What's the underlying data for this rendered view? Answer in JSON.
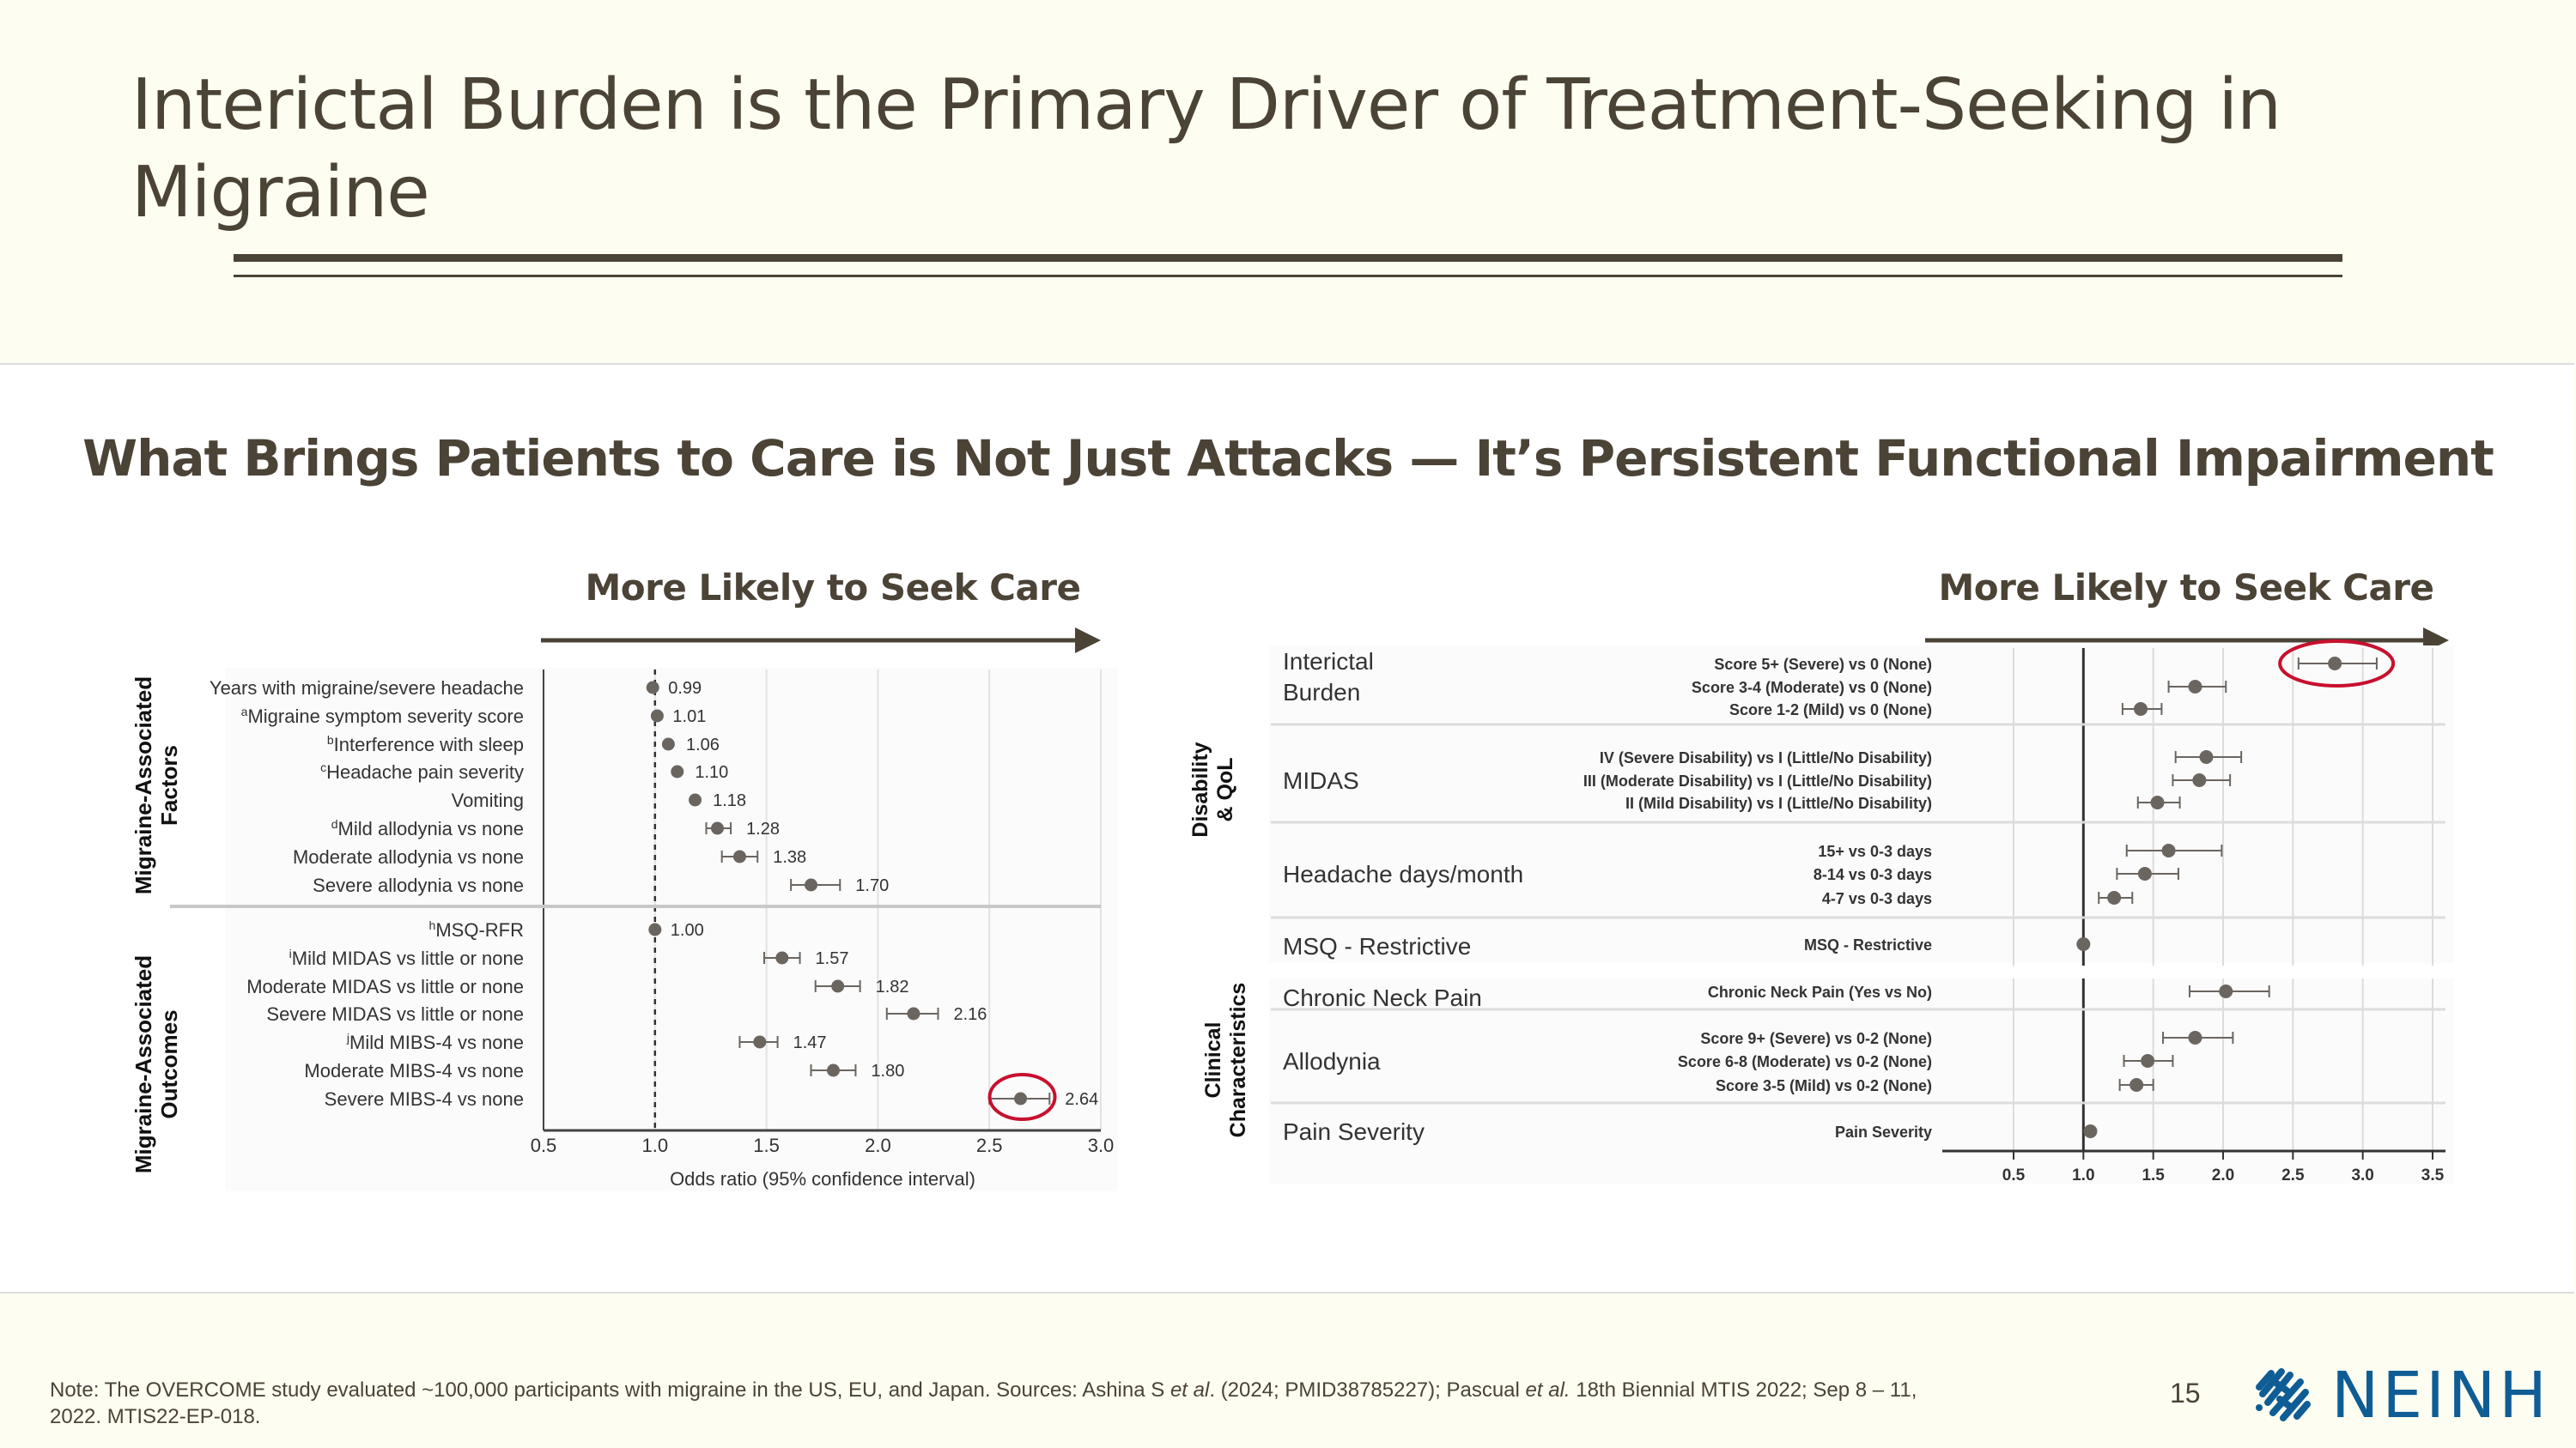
{
  "title": "Interictal Burden is the Primary Driver of Treatment-Seeking in Migraine",
  "subtitle": "What Brings Patients to Care is Not Just Attacks — It’s Persistent Functional Impairment",
  "left_arrow_label": "More Likely to Seek Care",
  "right_arrow_label": "More Likely to Seek Care",
  "footer": {
    "note_prefix": "Note: The OVERCOME study evaluated ~100,000 participants with migraine in the US, EU, and Japan. Sources: Ashina S ",
    "etal1": "et al",
    "note_mid": ". (2024; PMID38785227); Pascual ",
    "etal2": "et al.",
    "note_suffix": " 18th Biennial MTIS 2022; Sep 8 – 11, 2022. MTIS22-EP-018."
  },
  "page_number": "15",
  "logo": {
    "text": "NEINH",
    "color": "#0f5d94"
  },
  "colors": {
    "point": "#6b6560",
    "highlight": "#c8102e",
    "text": "#4b4336"
  },
  "chart_data": [
    {
      "type": "forest",
      "xlabel": "Odds ratio (95% confidence interval)",
      "xlim": [
        0.5,
        3.0
      ],
      "xticks": [
        "0.5",
        "1.0",
        "1.5",
        "2.0",
        "2.5",
        "3.0"
      ],
      "reference_line": 1.0,
      "grid": true,
      "groups": [
        {
          "name": "Migraine-Associated Factors",
          "rows": [
            {
              "sup": "",
              "label": "Years with migraine/severe headache",
              "value": 0.99,
              "value_label": "0.99",
              "ci": [
                0.99,
                0.99
              ]
            },
            {
              "sup": "a",
              "label": "Migraine symptom severity score",
              "value": 1.01,
              "value_label": "1.01",
              "ci": [
                1.01,
                1.01
              ]
            },
            {
              "sup": "b",
              "label": "Interference with sleep",
              "value": 1.06,
              "value_label": "1.06",
              "ci": [
                1.05,
                1.07
              ]
            },
            {
              "sup": "c",
              "label": "Headache pain severity",
              "value": 1.1,
              "value_label": "1.10",
              "ci": [
                1.09,
                1.11
              ]
            },
            {
              "sup": "",
              "label": "Vomiting",
              "value": 1.18,
              "value_label": "1.18",
              "ci": [
                1.17,
                1.19
              ]
            },
            {
              "sup": "d",
              "label": "Mild allodynia vs none",
              "value": 1.28,
              "value_label": "1.28",
              "ci": [
                1.23,
                1.34
              ]
            },
            {
              "sup": "",
              "label": "Moderate allodynia vs none",
              "value": 1.38,
              "value_label": "1.38",
              "ci": [
                1.3,
                1.46
              ]
            },
            {
              "sup": "",
              "label": "Severe allodynia vs none",
              "value": 1.7,
              "value_label": "1.70",
              "ci": [
                1.61,
                1.83
              ]
            }
          ]
        },
        {
          "name": "Migraine-Associated Outcomes",
          "rows": [
            {
              "sup": "h",
              "label": "MSQ-RFR",
              "value": 1.0,
              "value_label": "1.00",
              "ci": [
                1.0,
                1.0
              ]
            },
            {
              "sup": "i",
              "label": "Mild MIDAS vs little or none",
              "value": 1.57,
              "value_label": "1.57",
              "ci": [
                1.49,
                1.65
              ]
            },
            {
              "sup": "",
              "label": "Moderate MIDAS vs little or none",
              "value": 1.82,
              "value_label": "1.82",
              "ci": [
                1.72,
                1.92
              ]
            },
            {
              "sup": "",
              "label": "Severe MIDAS vs little or none",
              "value": 2.16,
              "value_label": "2.16",
              "ci": [
                2.04,
                2.27
              ]
            },
            {
              "sup": "j",
              "label": "Mild MIBS-4 vs none",
              "value": 1.47,
              "value_label": "1.47",
              "ci": [
                1.38,
                1.55
              ]
            },
            {
              "sup": "",
              "label": "Moderate MIBS-4 vs none",
              "value": 1.8,
              "value_label": "1.80",
              "ci": [
                1.7,
                1.9
              ]
            },
            {
              "sup": "",
              "label": "Severe MIBS-4 vs none",
              "value": 2.64,
              "value_label": "2.64",
              "ci": [
                2.5,
                2.77
              ],
              "highlighted": true
            }
          ]
        }
      ]
    },
    {
      "type": "forest",
      "xlim": [
        0.5,
        3.5
      ],
      "xticks": [
        "0.5",
        "1.0",
        "1.5",
        "2.0",
        "2.5",
        "3.0",
        "3.5"
      ],
      "reference_line": 1.0,
      "grid": true,
      "groups": [
        {
          "name": "Disability & QoL",
          "categories": [
            {
              "name": "Interictal Burden",
              "rows": [
                {
                  "label": "Score 5+ (Severe) vs 0 (None)",
                  "value": 2.8,
                  "ci": [
                    2.54,
                    3.1
                  ],
                  "highlighted": true
                },
                {
                  "label": "Score 3-4 (Moderate) vs 0 (None)",
                  "value": 1.8,
                  "ci": [
                    1.61,
                    2.02
                  ]
                },
                {
                  "label": "Score 1-2 (Mild) vs 0 (None)",
                  "value": 1.41,
                  "ci": [
                    1.28,
                    1.56
                  ]
                }
              ]
            },
            {
              "name": "MIDAS",
              "rows": [
                {
                  "label": "IV (Severe Disability) vs I (Little/No Disability)",
                  "value": 1.88,
                  "ci": [
                    1.66,
                    2.13
                  ]
                },
                {
                  "label": "III (Moderate Disability) vs I (Little/No Disability)",
                  "value": 1.83,
                  "ci": [
                    1.64,
                    2.05
                  ]
                },
                {
                  "label": "II (Mild Disability) vs I (Little/No Disability)",
                  "value": 1.53,
                  "ci": [
                    1.39,
                    1.69
                  ]
                }
              ]
            },
            {
              "name": "Headache days/month",
              "rows": [
                {
                  "label": "15+ vs 0-3 days",
                  "value": 1.61,
                  "ci": [
                    1.31,
                    1.99
                  ]
                },
                {
                  "label": "8-14 vs 0-3 days",
                  "value": 1.44,
                  "ci": [
                    1.24,
                    1.68
                  ]
                },
                {
                  "label": "4-7 vs 0-3 days",
                  "value": 1.22,
                  "ci": [
                    1.11,
                    1.35
                  ]
                }
              ]
            },
            {
              "name": "MSQ - Restrictive",
              "rows": [
                {
                  "label": "MSQ - Restrictive",
                  "value": 1.0,
                  "ci": [
                    0.99,
                    1.01
                  ]
                }
              ]
            }
          ]
        },
        {
          "name": "Clinical Characteristics",
          "categories": [
            {
              "name": "Chronic Neck Pain",
              "rows": [
                {
                  "label": "Chronic Neck Pain (Yes vs No)",
                  "value": 2.02,
                  "ci": [
                    1.76,
                    2.33
                  ]
                }
              ]
            },
            {
              "name": "Allodynia",
              "rows": [
                {
                  "label": "Score 9+ (Severe) vs 0-2 (None)",
                  "value": 1.8,
                  "ci": [
                    1.57,
                    2.07
                  ]
                },
                {
                  "label": "Score 6-8 (Moderate) vs 0-2 (None)",
                  "value": 1.46,
                  "ci": [
                    1.29,
                    1.64
                  ]
                },
                {
                  "label": "Score 3-5 (Mild) vs 0-2 (None)",
                  "value": 1.38,
                  "ci": [
                    1.26,
                    1.5
                  ]
                }
              ]
            },
            {
              "name": "Pain Severity",
              "rows": [
                {
                  "label": "Pain Severity",
                  "value": 1.05,
                  "ci": [
                    1.03,
                    1.07
                  ]
                }
              ]
            }
          ]
        }
      ]
    }
  ]
}
